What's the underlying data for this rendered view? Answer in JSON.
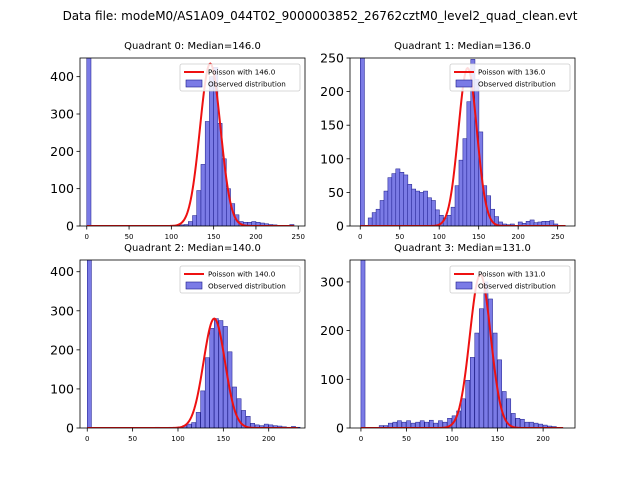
{
  "suptitle": "Data file: modeM0/AS1A09_044T02_9000003852_26762cztM0_level2_quad_clean.evt",
  "colors": {
    "hist_fill": "#7b7be6",
    "hist_edge": "#1a1a8a",
    "poisson": "#ee1111"
  },
  "chart_data": [
    {
      "type": "bar",
      "title": "Quadrant 0: Median=146.0",
      "median": 146.0,
      "xlim": [
        -8,
        258
      ],
      "ylim": [
        0,
        450
      ],
      "xticks": [
        0,
        50,
        100,
        150,
        200,
        250
      ],
      "yticks": [
        0,
        100,
        200,
        300,
        400
      ],
      "bin_width": 5,
      "bins": [
        [
          0,
          450
        ],
        [
          80,
          2
        ],
        [
          90,
          1
        ],
        [
          100,
          1
        ],
        [
          105,
          2
        ],
        [
          110,
          3
        ],
        [
          115,
          4
        ],
        [
          120,
          12
        ],
        [
          125,
          28
        ],
        [
          130,
          95
        ],
        [
          135,
          165
        ],
        [
          140,
          280
        ],
        [
          145,
          400
        ],
        [
          150,
          425
        ],
        [
          155,
          275
        ],
        [
          160,
          180
        ],
        [
          165,
          100
        ],
        [
          170,
          60
        ],
        [
          175,
          30
        ],
        [
          180,
          12
        ],
        [
          185,
          10
        ],
        [
          190,
          10
        ],
        [
          195,
          12
        ],
        [
          200,
          10
        ],
        [
          205,
          8
        ],
        [
          210,
          6
        ],
        [
          215,
          4
        ],
        [
          220,
          3
        ],
        [
          225,
          2
        ],
        [
          230,
          2
        ],
        [
          235,
          1
        ],
        [
          240,
          4
        ]
      ],
      "poisson": {
        "label": "Poisson with 146.0",
        "mean": 146.0,
        "peak": 435,
        "sigma": 12.1,
        "x_range": [
          0,
          245
        ]
      },
      "legend": {
        "poisson": "Poisson with 146.0",
        "observed": "Observed distribution"
      }
    },
    {
      "type": "bar",
      "title": "Quadrant 1: Median=136.0",
      "median": 136.0,
      "xlim": [
        -13,
        272
      ],
      "ylim": [
        0,
        250
      ],
      "xticks": [
        0,
        50,
        100,
        150,
        200,
        250
      ],
      "yticks": [
        0,
        50,
        100,
        150,
        200,
        250
      ],
      "bin_width": 5.3,
      "bins": [
        [
          0,
          250
        ],
        [
          10,
          12
        ],
        [
          15,
          20
        ],
        [
          20,
          25
        ],
        [
          25,
          38
        ],
        [
          30,
          52
        ],
        [
          35,
          72
        ],
        [
          40,
          78
        ],
        [
          45,
          85
        ],
        [
          50,
          80
        ],
        [
          55,
          76
        ],
        [
          60,
          62
        ],
        [
          65,
          55
        ],
        [
          70,
          52
        ],
        [
          75,
          50
        ],
        [
          80,
          52
        ],
        [
          85,
          42
        ],
        [
          90,
          38
        ],
        [
          95,
          24
        ],
        [
          100,
          16
        ],
        [
          105,
          12
        ],
        [
          110,
          16
        ],
        [
          115,
          28
        ],
        [
          120,
          60
        ],
        [
          125,
          98
        ],
        [
          130,
          130
        ],
        [
          135,
          185
        ],
        [
          140,
          248
        ],
        [
          145,
          218
        ],
        [
          150,
          140
        ],
        [
          155,
          60
        ],
        [
          160,
          45
        ],
        [
          165,
          25
        ],
        [
          170,
          14
        ],
        [
          175,
          6
        ],
        [
          180,
          3
        ],
        [
          185,
          2
        ],
        [
          190,
          3
        ],
        [
          200,
          6
        ],
        [
          205,
          4
        ],
        [
          210,
          7
        ],
        [
          215,
          9
        ],
        [
          220,
          5
        ],
        [
          225,
          6
        ],
        [
          230,
          7
        ],
        [
          235,
          7
        ],
        [
          240,
          8
        ],
        [
          245,
          3
        ]
      ],
      "poisson": {
        "label": "Poisson with 136.0",
        "mean": 136.0,
        "peak": 235,
        "sigma": 11.7,
        "x_range": [
          0,
          260
        ]
      },
      "legend": {
        "poisson": "Poisson with 136.0",
        "observed": "Observed distribution"
      }
    },
    {
      "type": "bar",
      "title": "Quadrant 2: Median=140.0",
      "median": 140.0,
      "xlim": [
        -8,
        240
      ],
      "ylim": [
        0,
        430
      ],
      "xticks": [
        0,
        50,
        100,
        150,
        200
      ],
      "yticks": [
        0,
        100,
        200,
        300,
        400
      ],
      "bin_width": 4.6,
      "bins": [
        [
          0,
          430
        ],
        [
          75,
          2
        ],
        [
          80,
          1
        ],
        [
          90,
          2
        ],
        [
          100,
          3
        ],
        [
          105,
          6
        ],
        [
          110,
          10
        ],
        [
          115,
          14
        ],
        [
          120,
          40
        ],
        [
          125,
          95
        ],
        [
          130,
          180
        ],
        [
          135,
          255
        ],
        [
          140,
          280
        ],
        [
          145,
          275
        ],
        [
          150,
          260
        ],
        [
          155,
          195
        ],
        [
          160,
          105
        ],
        [
          165,
          75
        ],
        [
          170,
          45
        ],
        [
          175,
          30
        ],
        [
          180,
          12
        ],
        [
          185,
          8
        ],
        [
          190,
          6
        ],
        [
          195,
          10
        ],
        [
          200,
          8
        ],
        [
          205,
          6
        ],
        [
          210,
          5
        ],
        [
          215,
          3
        ],
        [
          220,
          2
        ],
        [
          225,
          4
        ],
        [
          230,
          2
        ]
      ],
      "poisson": {
        "label": "Poisson with 140.0",
        "mean": 140.0,
        "peak": 280,
        "sigma": 11.8,
        "x_range": [
          0,
          232
        ]
      },
      "legend": {
        "poisson": "Poisson with 140.0",
        "observed": "Observed distribution"
      }
    },
    {
      "type": "bar",
      "title": "Quadrant 3: Median=131.0",
      "median": 131.0,
      "xlim": [
        -12,
        235
      ],
      "ylim": [
        0,
        345
      ],
      "xticks": [
        0,
        50,
        100,
        150,
        200
      ],
      "yticks": [
        0,
        100,
        200,
        300
      ],
      "bin_width": 4.5,
      "bins": [
        [
          0,
          345
        ],
        [
          20,
          5
        ],
        [
          25,
          5
        ],
        [
          30,
          10
        ],
        [
          35,
          12
        ],
        [
          40,
          15
        ],
        [
          45,
          12
        ],
        [
          50,
          15
        ],
        [
          55,
          10
        ],
        [
          60,
          12
        ],
        [
          65,
          15
        ],
        [
          70,
          12
        ],
        [
          75,
          16
        ],
        [
          80,
          10
        ],
        [
          85,
          15
        ],
        [
          90,
          12
        ],
        [
          95,
          20
        ],
        [
          100,
          25
        ],
        [
          105,
          35
        ],
        [
          110,
          60
        ],
        [
          115,
          98
        ],
        [
          120,
          145
        ],
        [
          125,
          195
        ],
        [
          130,
          245
        ],
        [
          135,
          300
        ],
        [
          140,
          265
        ],
        [
          145,
          195
        ],
        [
          150,
          140
        ],
        [
          155,
          75
        ],
        [
          160,
          60
        ],
        [
          165,
          30
        ],
        [
          170,
          20
        ],
        [
          175,
          18
        ],
        [
          180,
          12
        ],
        [
          185,
          12
        ],
        [
          190,
          10
        ],
        [
          195,
          8
        ],
        [
          200,
          6
        ],
        [
          205,
          4
        ],
        [
          210,
          3
        ]
      ],
      "poisson": {
        "label": "Poisson with 131.0",
        "mean": 131.0,
        "peak": 315,
        "sigma": 11.4,
        "x_range": [
          0,
          222
        ]
      },
      "legend": {
        "poisson": "Poisson with 131.0",
        "observed": "Observed distribution"
      }
    }
  ]
}
